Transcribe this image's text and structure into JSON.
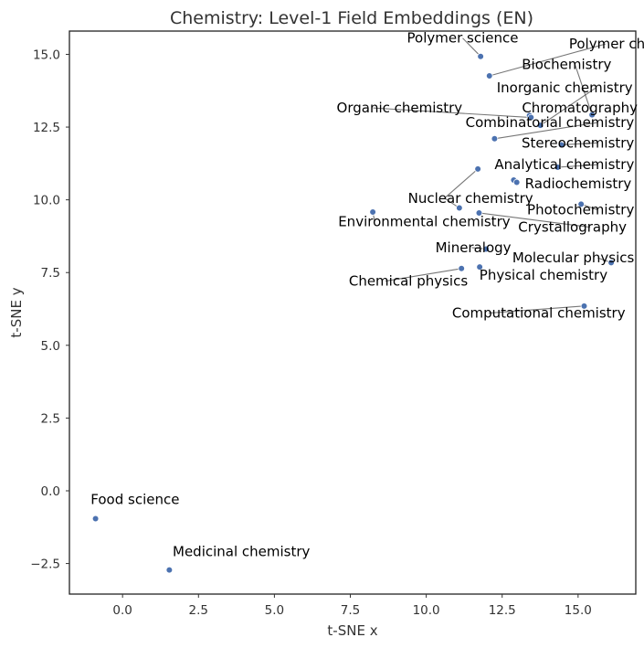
{
  "chart_data": {
    "type": "scatter",
    "title": "Chemistry: Level-1 Field Embeddings (EN)",
    "xlabel": "t-SNE x",
    "ylabel": "t-SNE y",
    "xlim": [
      -1.75,
      16.9
    ],
    "ylim": [
      -3.55,
      15.8
    ],
    "xticks": [
      0.0,
      2.5,
      5.0,
      7.5,
      10.0,
      12.5,
      15.0
    ],
    "xtick_labels": [
      "0.0",
      "2.5",
      "5.0",
      "7.5",
      "10.0",
      "12.5",
      "15.0"
    ],
    "yticks": [
      -2.5,
      0.0,
      2.5,
      5.0,
      7.5,
      10.0,
      12.5,
      15.0
    ],
    "ytick_labels": [
      "−2.5",
      "0.0",
      "2.5",
      "5.0",
      "7.5",
      "10.0",
      "12.5",
      "15.0"
    ],
    "grid": false,
    "marker_color": "#4c72b0",
    "points": [
      {
        "label": "Polymer science",
        "x": 11.79,
        "y": 14.93,
        "lx": 11.2,
        "ly": 15.4,
        "anchor": "middle"
      },
      {
        "label": "Polymer chemistry",
        "x": 12.08,
        "y": 14.26,
        "lx": 14.7,
        "ly": 15.2,
        "anchor": "start"
      },
      {
        "label": "Biochemistry",
        "x": 15.46,
        "y": 12.92,
        "lx": 16.1,
        "ly": 14.5,
        "anchor": "end"
      },
      {
        "label": "Inorganic chemistry",
        "x": 13.76,
        "y": 12.56,
        "lx": 16.8,
        "ly": 13.7,
        "anchor": "end"
      },
      {
        "label": "Chromatography",
        "x": 13.4,
        "y": 12.9,
        "lx": 13.15,
        "ly": 13.0,
        "anchor": "start"
      },
      {
        "label": "Organic chemistry",
        "x": 13.45,
        "y": 12.83,
        "lx": 7.05,
        "ly": 13.0,
        "anchor": "start"
      },
      {
        "label": "Combinatorial chemistry",
        "x": 12.25,
        "y": 12.1,
        "lx": 16.85,
        "ly": 12.5,
        "anchor": "end"
      },
      {
        "label": "Stereochemistry",
        "x": 14.45,
        "y": 11.89,
        "lx": 16.85,
        "ly": 11.8,
        "anchor": "end"
      },
      {
        "label": "Analytical chemistry",
        "x": 14.33,
        "y": 11.12,
        "lx": 16.85,
        "ly": 11.05,
        "anchor": "end"
      },
      {
        "label": "Nuclear chemistry",
        "x": 11.7,
        "y": 11.06,
        "lx": 9.4,
        "ly": 9.9,
        "anchor": "start"
      },
      {
        "label": "Radiochemistry",
        "x": 12.88,
        "y": 10.68,
        "lx": 13.25,
        "ly": 10.4,
        "anchor": "start"
      },
      {
        "label": "Radiochemistry",
        "x": 12.98,
        "y": 10.6,
        "lx": 13.25,
        "ly": 10.4,
        "anchor": "start"
      },
      {
        "label": "Environmental chemistry",
        "x": 8.24,
        "y": 9.58,
        "lx": 7.1,
        "ly": 9.1,
        "anchor": "start"
      },
      {
        "label": "Photochemistry",
        "x": 15.1,
        "y": 9.85,
        "lx": 16.85,
        "ly": 9.5,
        "anchor": "end"
      },
      {
        "label": "Nuclear chemistry",
        "x": 11.09,
        "y": 9.72,
        "lx": 9.4,
        "ly": 9.9,
        "anchor": "start"
      },
      {
        "label": "Crystallography",
        "x": 11.74,
        "y": 9.55,
        "lx": 16.6,
        "ly": 8.9,
        "anchor": "end"
      },
      {
        "label": "Mineralogy",
        "x": 11.97,
        "y": 8.31,
        "lx": 10.3,
        "ly": 8.2,
        "anchor": "start"
      },
      {
        "label": "Molecular physics",
        "x": 16.09,
        "y": 7.84,
        "lx": 16.85,
        "ly": 7.85,
        "anchor": "end"
      },
      {
        "label": "Physical chemistry",
        "x": 11.76,
        "y": 7.69,
        "lx": 11.75,
        "ly": 7.25,
        "anchor": "start"
      },
      {
        "label": "Chemical physics",
        "x": 11.16,
        "y": 7.64,
        "lx": 7.45,
        "ly": 7.05,
        "anchor": "start"
      },
      {
        "label": "Computational chemistry",
        "x": 15.2,
        "y": 6.35,
        "lx": 10.85,
        "ly": 5.95,
        "anchor": "start"
      },
      {
        "label": "Food science",
        "x": -0.89,
        "y": -0.96,
        "lx": -1.05,
        "ly": -0.45,
        "anchor": "start"
      },
      {
        "label": "Medicinal chemistry",
        "x": 1.54,
        "y": -2.72,
        "lx": 1.65,
        "ly": -2.25,
        "anchor": "start"
      }
    ]
  }
}
